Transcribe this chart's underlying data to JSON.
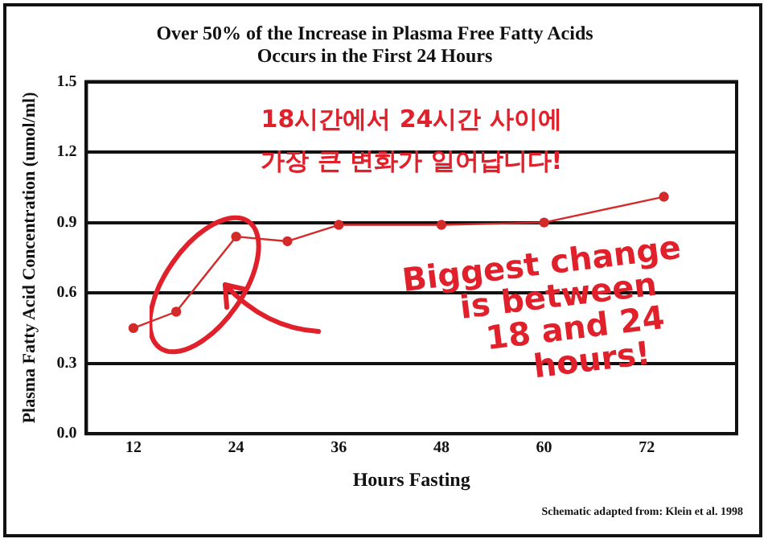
{
  "chart_data": {
    "type": "line",
    "title": "Over 50% of the Increase in Plasma Free Fatty Acids\nOccurs in the First 24 Hours",
    "xlabel": "Hours Fasting",
    "ylabel": "Plasma Fatty Acid Concentration (umol/ml)",
    "x": [
      12,
      17,
      24,
      30,
      36,
      48,
      60,
      74
    ],
    "series": [
      {
        "color": "#d42a2a",
        "values": [
          0.45,
          0.52,
          0.84,
          0.82,
          0.89,
          0.89,
          0.9,
          1.01
        ]
      }
    ],
    "xlim": [
      6.5,
      82.5
    ],
    "xticks": [
      12,
      24,
      36,
      48,
      60,
      72
    ],
    "ylim": [
      0,
      1.5
    ],
    "yticks": [
      {
        "value": 0,
        "label": "0.0"
      },
      0.3,
      0.6,
      0.9,
      1.2,
      1.5
    ],
    "grid": "y",
    "marker": "circle",
    "line_style": "solid",
    "legend": false,
    "annotations": [
      "18시간에서 24시간 사이에\n가장 큰 변화가 일어납니다!",
      "Biggest change\nis between\n18 and 24\nhours!",
      "Schematic adapted from: Klein et al. 1998"
    ]
  }
}
